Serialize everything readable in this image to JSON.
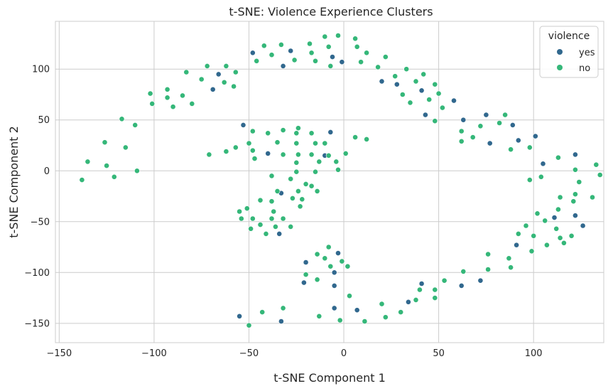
{
  "chart_data": {
    "type": "scatter",
    "title": "t-SNE: Violence Experience Clusters",
    "xlabel": "t-SNE Component 1",
    "ylabel": "t-SNE Component 2",
    "xlim": [
      -152,
      137
    ],
    "ylim": [
      -169,
      147
    ],
    "xticks": [
      -150,
      -100,
      -50,
      0,
      50,
      100
    ],
    "yticks": [
      -150,
      -100,
      -50,
      0,
      50,
      100
    ],
    "xtick_labels": [
      "−150",
      "−100",
      "−50",
      "0",
      "50",
      "100"
    ],
    "ytick_labels": [
      "−150",
      "−100",
      "−50",
      "0",
      "50",
      "100"
    ],
    "grid": true,
    "legend": {
      "title": "violence",
      "placement": "top-right"
    },
    "series": [
      {
        "name": "yes",
        "color": "#31688e",
        "points": [
          [
            -48,
            116
          ],
          [
            -28,
            118
          ],
          [
            -32,
            103
          ],
          [
            -6,
            112
          ],
          [
            -1,
            107
          ],
          [
            -69,
            80
          ],
          [
            -66,
            95
          ],
          [
            20,
            88
          ],
          [
            28,
            85
          ],
          [
            41,
            79
          ],
          [
            43,
            55
          ],
          [
            58,
            69
          ],
          [
            63,
            50
          ],
          [
            75,
            55
          ],
          [
            77,
            27
          ],
          [
            89,
            45
          ],
          [
            92,
            30
          ],
          [
            101,
            34
          ],
          [
            105,
            7
          ],
          [
            122,
            16
          ],
          [
            126,
            -54
          ],
          [
            111,
            -46
          ],
          [
            122,
            -44
          ],
          [
            91,
            -73
          ],
          [
            -53,
            45
          ],
          [
            -7,
            38
          ],
          [
            -40,
            17
          ],
          [
            -10,
            15
          ],
          [
            -33,
            -22
          ],
          [
            -34,
            -62
          ],
          [
            -20,
            -90
          ],
          [
            -21,
            -110
          ],
          [
            -3,
            -81
          ],
          [
            -5,
            -100
          ],
          [
            -5,
            -113
          ],
          [
            -5,
            -135
          ],
          [
            7,
            -137
          ],
          [
            -33,
            -148
          ],
          [
            -55,
            -143
          ],
          [
            34,
            -129
          ],
          [
            41,
            -111
          ],
          [
            62,
            -113
          ],
          [
            72,
            -108
          ]
        ]
      },
      {
        "name": "no",
        "color": "#35b779",
        "points": [
          [
            -42,
            123
          ],
          [
            -33,
            124
          ],
          [
            -38,
            114
          ],
          [
            -46,
            108
          ],
          [
            -26,
            109
          ],
          [
            -18,
            125
          ],
          [
            -17,
            116
          ],
          [
            -15,
            108
          ],
          [
            -10,
            132
          ],
          [
            -8,
            122
          ],
          [
            -3,
            133
          ],
          [
            -7,
            103
          ],
          [
            6,
            130
          ],
          [
            7,
            122
          ],
          [
            9,
            107
          ],
          [
            12,
            116
          ],
          [
            18,
            102
          ],
          [
            22,
            112
          ],
          [
            27,
            93
          ],
          [
            33,
            100
          ],
          [
            38,
            88
          ],
          [
            42,
            95
          ],
          [
            48,
            85
          ],
          [
            50,
            76
          ],
          [
            52,
            62
          ],
          [
            45,
            70
          ],
          [
            31,
            75
          ],
          [
            35,
            67
          ],
          [
            48,
            49
          ],
          [
            62,
            39
          ],
          [
            62,
            29
          ],
          [
            68,
            33
          ],
          [
            72,
            44
          ],
          [
            82,
            47
          ],
          [
            85,
            55
          ],
          [
            88,
            21
          ],
          [
            98,
            23
          ],
          [
            98,
            -9
          ],
          [
            104,
            -6
          ],
          [
            113,
            13
          ],
          [
            114,
            -26
          ],
          [
            113,
            -38
          ],
          [
            122,
            -23
          ],
          [
            122,
            1
          ],
          [
            124,
            -11
          ],
          [
            121,
            -30
          ],
          [
            133,
            6
          ],
          [
            135,
            -4
          ],
          [
            131,
            -26
          ],
          [
            106,
            -49
          ],
          [
            102,
            -42
          ],
          [
            100,
            -64
          ],
          [
            96,
            -54
          ],
          [
            112,
            -57
          ],
          [
            114,
            -66
          ],
          [
            107,
            -73
          ],
          [
            116,
            -71
          ],
          [
            120,
            -64
          ],
          [
            99,
            -79
          ],
          [
            92,
            -62
          ],
          [
            87,
            -86
          ],
          [
            88,
            -95
          ],
          [
            76,
            -82
          ],
          [
            76,
            -97
          ],
          [
            63,
            -99
          ],
          [
            53,
            -108
          ],
          [
            48,
            -117
          ],
          [
            48,
            -125
          ],
          [
            40,
            -117
          ],
          [
            38,
            -127
          ],
          [
            30,
            -139
          ],
          [
            22,
            -144
          ],
          [
            20,
            -131
          ],
          [
            11,
            -148
          ],
          [
            3,
            -123
          ],
          [
            -2,
            -147
          ],
          [
            -13,
            -143
          ],
          [
            -14,
            -107
          ],
          [
            -8,
            -75
          ],
          [
            -10,
            -86
          ],
          [
            -14,
            -82
          ],
          [
            -7,
            -94
          ],
          [
            2,
            -94
          ],
          [
            -1,
            -89
          ],
          [
            -20,
            -102
          ],
          [
            -72,
            103
          ],
          [
            -62,
            103
          ],
          [
            -57,
            97
          ],
          [
            -75,
            90
          ],
          [
            -63,
            87
          ],
          [
            -58,
            83
          ],
          [
            -83,
            97
          ],
          [
            -102,
            76
          ],
          [
            -93,
            80
          ],
          [
            -85,
            74
          ],
          [
            -80,
            66
          ],
          [
            -90,
            63
          ],
          [
            -93,
            72
          ],
          [
            -101,
            66
          ],
          [
            -110,
            45
          ],
          [
            -117,
            51
          ],
          [
            -126,
            28
          ],
          [
            -115,
            23
          ],
          [
            -135,
            9
          ],
          [
            -125,
            5
          ],
          [
            -109,
            0
          ],
          [
            -121,
            -6
          ],
          [
            -138,
            -9
          ],
          [
            -71,
            16
          ],
          [
            -62,
            19
          ],
          [
            -57,
            23
          ],
          [
            -50,
            27
          ],
          [
            -48,
            20
          ],
          [
            -47,
            12
          ],
          [
            -48,
            39
          ],
          [
            -40,
            37
          ],
          [
            -32,
            40
          ],
          [
            -25,
            37
          ],
          [
            -24,
            42
          ],
          [
            -17,
            37
          ],
          [
            -15,
            27
          ],
          [
            -25,
            27
          ],
          [
            -35,
            28
          ],
          [
            -32,
            16
          ],
          [
            -24,
            16
          ],
          [
            -25,
            8
          ],
          [
            -10,
            27
          ],
          [
            -25,
            -1
          ],
          [
            -17,
            16
          ],
          [
            -13,
            9
          ],
          [
            -8,
            15
          ],
          [
            -4,
            9
          ],
          [
            -3,
            1
          ],
          [
            -15,
            -1
          ],
          [
            1,
            17
          ],
          [
            6,
            33
          ],
          [
            12,
            31
          ],
          [
            -28,
            -8
          ],
          [
            -38,
            -5
          ],
          [
            -20,
            -13
          ],
          [
            -17,
            -15
          ],
          [
            -14,
            -20
          ],
          [
            -24,
            -20
          ],
          [
            -27,
            -27
          ],
          [
            -35,
            -20
          ],
          [
            -38,
            -30
          ],
          [
            -44,
            -29
          ],
          [
            -48,
            -47
          ],
          [
            -55,
            -40
          ],
          [
            -54,
            -47
          ],
          [
            -49,
            -57
          ],
          [
            -51,
            -37
          ],
          [
            -44,
            -53
          ],
          [
            -41,
            -62
          ],
          [
            -38,
            -47
          ],
          [
            -37,
            -40
          ],
          [
            -36,
            -55
          ],
          [
            -32,
            -47
          ],
          [
            -28,
            -55
          ],
          [
            -22,
            -28
          ],
          [
            -23,
            -35
          ],
          [
            -50,
            -152
          ],
          [
            -43,
            -139
          ],
          [
            -32,
            -135
          ]
        ]
      }
    ]
  }
}
